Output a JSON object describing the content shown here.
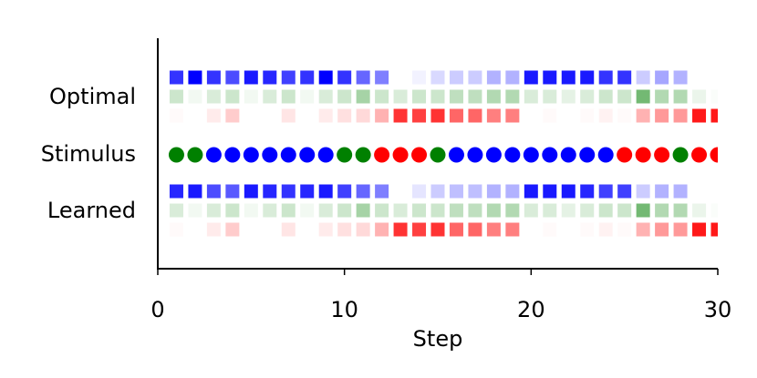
{
  "chart_data": {
    "type": "strip",
    "xlabel": "Step",
    "xlim": [
      0,
      30
    ],
    "xticks": [
      0,
      10,
      20,
      30
    ],
    "x": [
      1,
      2,
      3,
      4,
      5,
      6,
      7,
      8,
      9,
      10,
      11,
      12,
      13,
      14,
      15,
      16,
      17,
      18,
      19,
      20,
      21,
      22,
      23,
      24,
      25,
      26,
      27,
      28,
      29,
      30
    ],
    "rows": [
      {
        "name": "Optimal",
        "channels": [
          {
            "color": "#0000ff",
            "values": [
              0.8,
              1.0,
              0.8,
              0.7,
              0.9,
              0.85,
              0.75,
              0.8,
              1.0,
              0.8,
              0.6,
              0.5,
              0,
              0.05,
              0.15,
              0.2,
              0.2,
              0.3,
              0.3,
              0.9,
              0.9,
              0.9,
              0.9,
              0.8,
              0.8,
              0.2,
              0.35,
              0.3,
              0,
              0
            ]
          },
          {
            "color": "#008000",
            "values": [
              0.2,
              0.05,
              0.15,
              0.2,
              0.05,
              0.15,
              0.2,
              0.05,
              0.15,
              0.2,
              0.35,
              0.2,
              0.15,
              0.2,
              0.2,
              0.25,
              0.25,
              0.3,
              0.3,
              0.15,
              0.15,
              0.1,
              0.15,
              0.2,
              0.2,
              0.55,
              0.3,
              0.3,
              0.08,
              0.02
            ]
          },
          {
            "color": "#ff0000",
            "values": [
              0.02,
              0,
              0.08,
              0.2,
              0,
              0,
              0.1,
              0,
              0.08,
              0.12,
              0.15,
              0.3,
              0.8,
              0.75,
              0.8,
              0.6,
              0.6,
              0.5,
              0.5,
              0,
              0.02,
              0,
              0.02,
              0.05,
              0.02,
              0.3,
              0.4,
              0.4,
              0.9,
              0.9
            ]
          }
        ]
      },
      {
        "name": "Stimulus",
        "colors": [
          "#008000",
          "#008000",
          "#0000ff",
          "#0000ff",
          "#0000ff",
          "#0000ff",
          "#0000ff",
          "#0000ff",
          "#0000ff",
          "#008000",
          "#008000",
          "#ff0000",
          "#ff0000",
          "#ff0000",
          "#008000",
          "#0000ff",
          "#0000ff",
          "#0000ff",
          "#0000ff",
          "#0000ff",
          "#0000ff",
          "#0000ff",
          "#0000ff",
          "#0000ff",
          "#ff0000",
          "#ff0000",
          "#ff0000",
          "#008000",
          "#ff0000",
          "#ff0000"
        ]
      },
      {
        "name": "Learned",
        "channels": [
          {
            "color": "#0000ff",
            "values": [
              0.85,
              0.9,
              0.7,
              0.65,
              0.9,
              0.85,
              0.8,
              0.85,
              0.9,
              0.75,
              0.6,
              0.5,
              0,
              0.1,
              0.2,
              0.25,
              0.25,
              0.3,
              0.3,
              0.9,
              0.9,
              0.9,
              0.85,
              0.75,
              0.75,
              0.2,
              0.3,
              0.3,
              0,
              0
            ]
          },
          {
            "color": "#008000",
            "values": [
              0.15,
              0.05,
              0.15,
              0.2,
              0.05,
              0.15,
              0.2,
              0.05,
              0.15,
              0.2,
              0.35,
              0.2,
              0.15,
              0.2,
              0.2,
              0.25,
              0.25,
              0.3,
              0.3,
              0.15,
              0.15,
              0.1,
              0.15,
              0.2,
              0.2,
              0.55,
              0.3,
              0.3,
              0.08,
              0.02
            ]
          },
          {
            "color": "#ff0000",
            "values": [
              0.02,
              0,
              0.08,
              0.2,
              0,
              0,
              0.1,
              0,
              0.08,
              0.12,
              0.15,
              0.3,
              0.8,
              0.75,
              0.8,
              0.6,
              0.6,
              0.5,
              0.5,
              0,
              0.02,
              0,
              0.02,
              0.05,
              0.02,
              0.3,
              0.4,
              0.4,
              0.9,
              0.9
            ]
          }
        ]
      }
    ]
  }
}
